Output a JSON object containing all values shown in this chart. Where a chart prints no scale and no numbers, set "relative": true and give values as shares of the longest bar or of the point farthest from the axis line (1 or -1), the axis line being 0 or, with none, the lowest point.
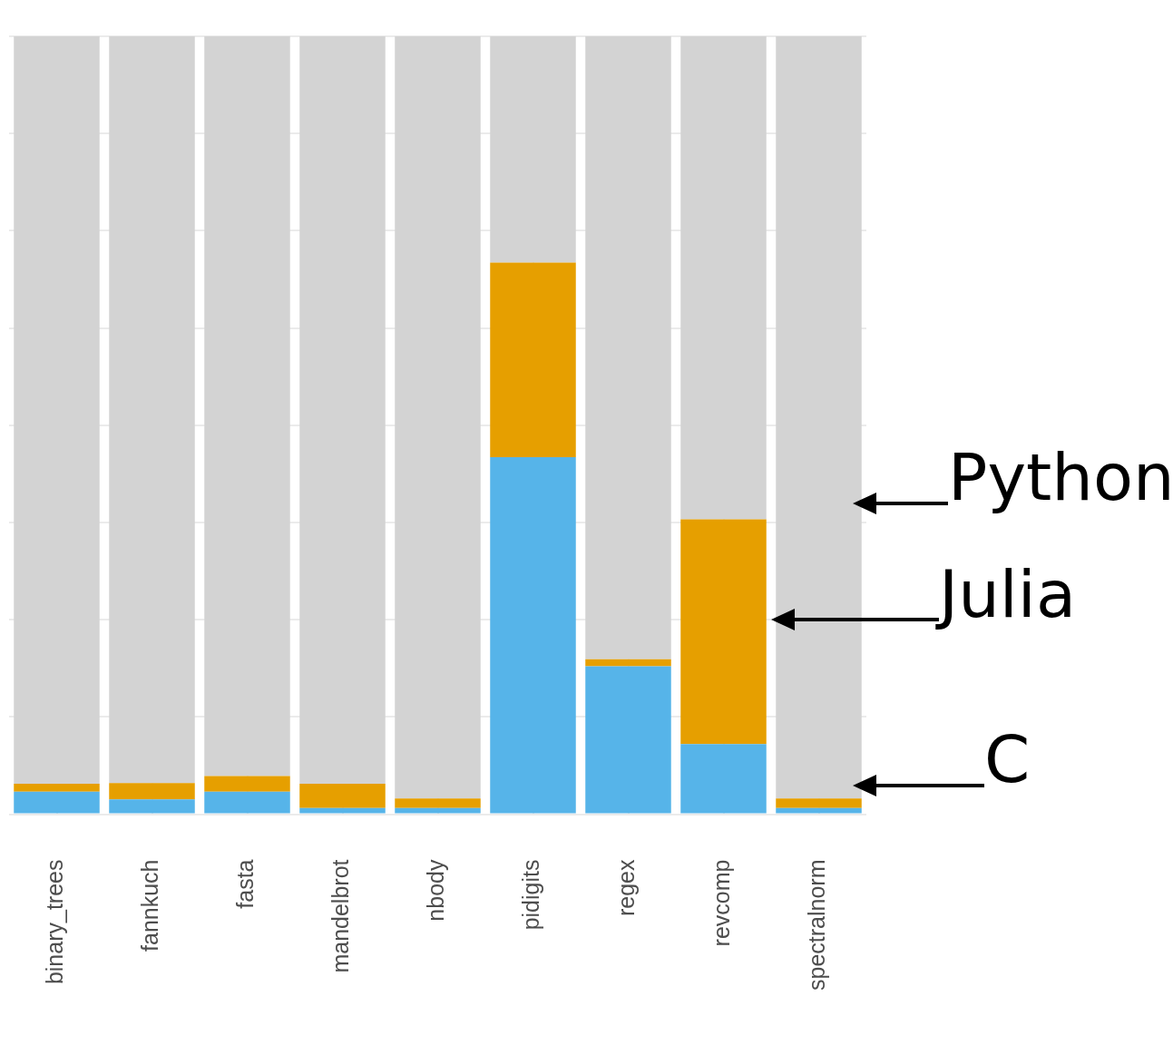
{
  "chart_data": {
    "type": "bar",
    "stacked": true,
    "relative": true,
    "grid": true,
    "legend": false,
    "categories": [
      "binary_trees",
      "fannkuch",
      "fasta",
      "mandelbrot",
      "nbody",
      "pidigits",
      "regex",
      "revcomp",
      "spectralnorm"
    ],
    "series": [
      {
        "name": "C",
        "color": "#56b4e9",
        "values": [
          0.029,
          0.019,
          0.029,
          0.008,
          0.008,
          0.459,
          0.19,
          0.09,
          0.008
        ]
      },
      {
        "name": "Julia",
        "color": "#e69f00",
        "values": [
          0.01,
          0.021,
          0.02,
          0.031,
          0.012,
          0.25,
          0.009,
          0.289,
          0.012
        ]
      },
      {
        "name": "Python",
        "color": "#d3d3d3",
        "values": [
          0.961,
          0.96,
          0.951,
          0.961,
          0.98,
          0.291,
          0.801,
          0.621,
          0.98
        ]
      }
    ]
  }
}
